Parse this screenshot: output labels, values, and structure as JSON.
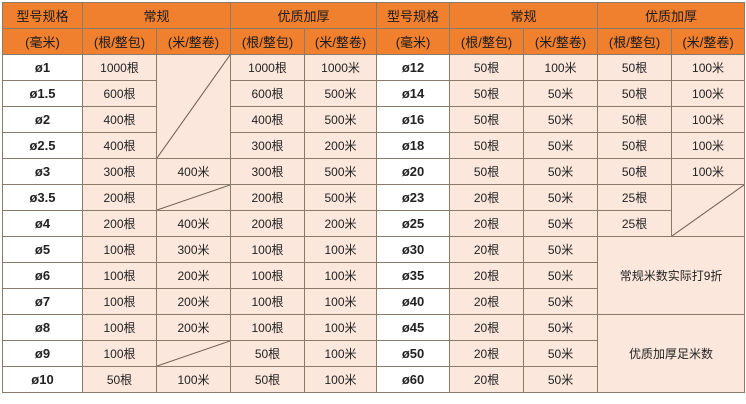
{
  "headers": {
    "spec": "型号规格",
    "spec_unit": "(毫米)",
    "regular": "常规",
    "premium": "优质加厚",
    "per_pack": "(根/整包)",
    "per_roll": "(米/整卷)"
  },
  "left_rows": [
    {
      "spec": "ø1",
      "reg_pack": "1000根",
      "reg_roll": "",
      "pre_pack": "1000根",
      "pre_roll": "1000米"
    },
    {
      "spec": "ø1.5",
      "reg_pack": "600根",
      "reg_roll": "",
      "pre_pack": "600根",
      "pre_roll": "500米"
    },
    {
      "spec": "ø2",
      "reg_pack": "400根",
      "reg_roll": "",
      "pre_pack": "400根",
      "pre_roll": "500米"
    },
    {
      "spec": "ø2.5",
      "reg_pack": "400根",
      "reg_roll": "",
      "pre_pack": "300根",
      "pre_roll": "200米"
    },
    {
      "spec": "ø3",
      "reg_pack": "300根",
      "reg_roll": "400米",
      "pre_pack": "300根",
      "pre_roll": "500米"
    },
    {
      "spec": "ø3.5",
      "reg_pack": "200根",
      "reg_roll": "",
      "pre_pack": "200根",
      "pre_roll": "500米"
    },
    {
      "spec": "ø4",
      "reg_pack": "200根",
      "reg_roll": "400米",
      "pre_pack": "200根",
      "pre_roll": "200米"
    },
    {
      "spec": "ø5",
      "reg_pack": "100根",
      "reg_roll": "300米",
      "pre_pack": "100根",
      "pre_roll": "100米"
    },
    {
      "spec": "ø6",
      "reg_pack": "100根",
      "reg_roll": "200米",
      "pre_pack": "100根",
      "pre_roll": "100米"
    },
    {
      "spec": "ø7",
      "reg_pack": "100根",
      "reg_roll": "200米",
      "pre_pack": "100根",
      "pre_roll": "100米"
    },
    {
      "spec": "ø8",
      "reg_pack": "100根",
      "reg_roll": "200米",
      "pre_pack": "100根",
      "pre_roll": "100米"
    },
    {
      "spec": "ø9",
      "reg_pack": "100根",
      "reg_roll": "",
      "pre_pack": "50根",
      "pre_roll": "100米"
    },
    {
      "spec": "ø10",
      "reg_pack": "50根",
      "reg_roll": "100米",
      "pre_pack": "50根",
      "pre_roll": "100米"
    }
  ],
  "right_rows": [
    {
      "spec": "ø12",
      "reg_pack": "50根",
      "reg_roll": "100米",
      "pre_pack": "50根",
      "pre_roll": "100米"
    },
    {
      "spec": "ø14",
      "reg_pack": "50根",
      "reg_roll": "50米",
      "pre_pack": "50根",
      "pre_roll": "100米"
    },
    {
      "spec": "ø16",
      "reg_pack": "50根",
      "reg_roll": "50米",
      "pre_pack": "50根",
      "pre_roll": "100米"
    },
    {
      "spec": "ø18",
      "reg_pack": "50根",
      "reg_roll": "50米",
      "pre_pack": "50根",
      "pre_roll": "100米"
    },
    {
      "spec": "ø20",
      "reg_pack": "50根",
      "reg_roll": "50米",
      "pre_pack": "50根",
      "pre_roll": "100米"
    },
    {
      "spec": "ø23",
      "reg_pack": "20根",
      "reg_roll": "50米",
      "pre_pack": "25根",
      "pre_roll": ""
    },
    {
      "spec": "ø25",
      "reg_pack": "20根",
      "reg_roll": "50米",
      "pre_pack": "25根",
      "pre_roll": ""
    },
    {
      "spec": "ø30",
      "reg_pack": "20根",
      "reg_roll": "50米"
    },
    {
      "spec": "ø35",
      "reg_pack": "20根",
      "reg_roll": "50米"
    },
    {
      "spec": "ø40",
      "reg_pack": "20根",
      "reg_roll": "50米"
    },
    {
      "spec": "ø45",
      "reg_pack": "20根",
      "reg_roll": "50米"
    },
    {
      "spec": "ø50",
      "reg_pack": "20根",
      "reg_roll": "50米"
    },
    {
      "spec": "ø60",
      "reg_pack": "20根",
      "reg_roll": "50米"
    }
  ],
  "notes": {
    "regular_discount": "常规米数实际打9折",
    "premium_full": "优质加厚足米数"
  },
  "colors": {
    "header_bg": "#f07f2e",
    "pink_bg": "#fbe7dc",
    "white_bg": "#ffffff",
    "border": "#8a7a6a"
  }
}
